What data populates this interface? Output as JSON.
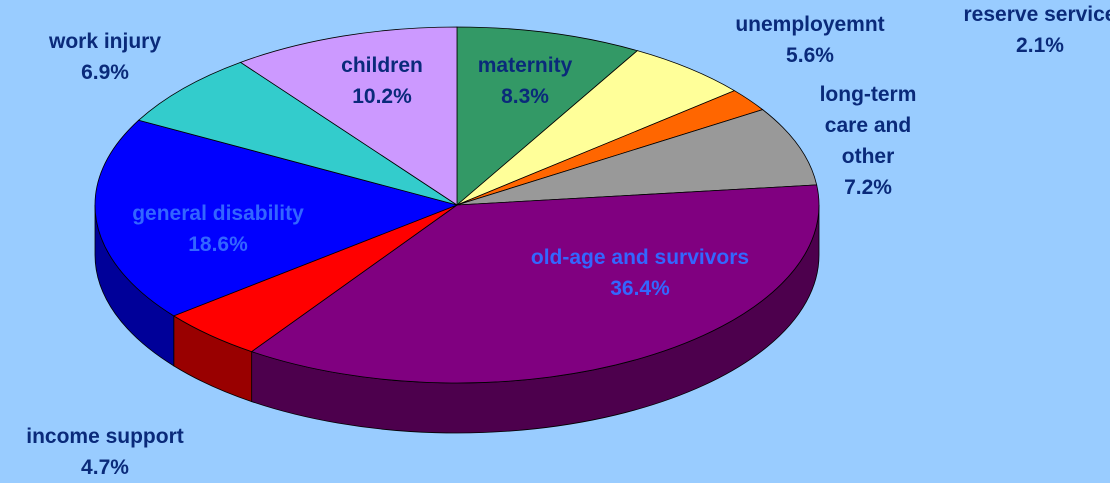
{
  "chart_data": {
    "type": "pie",
    "categories": [
      "maternity",
      "unemployemnt",
      "reserve service",
      "long-term care and other",
      "old-age and survivors",
      "income support",
      "general disability",
      "work injury",
      "children"
    ],
    "values": [
      8.3,
      5.6,
      2.1,
      7.2,
      36.4,
      4.7,
      18.6,
      6.9,
      10.2
    ],
    "value_labels": [
      "8.3%",
      "5.6%",
      "2.1%",
      "7.2%",
      "36.4%",
      "4.7%",
      "18.6%",
      "6.9%",
      "10.2%"
    ],
    "colors": [
      "#339966",
      "#ffff99",
      "#ff6600",
      "#999999",
      "#800080",
      "#ff0000",
      "#0000ff",
      "#33cccc",
      "#cc99ff"
    ],
    "three_d": true
  }
}
